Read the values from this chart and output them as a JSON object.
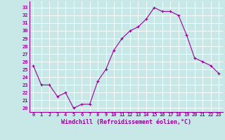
{
  "hours": [
    0,
    1,
    2,
    3,
    4,
    5,
    6,
    7,
    8,
    9,
    10,
    11,
    12,
    13,
    14,
    15,
    16,
    17,
    18,
    19,
    20,
    21,
    22,
    23
  ],
  "values": [
    25.5,
    23.0,
    23.0,
    21.5,
    22.0,
    20.0,
    20.5,
    20.5,
    23.5,
    25.0,
    27.5,
    29.0,
    30.0,
    30.5,
    31.5,
    33.0,
    32.5,
    32.5,
    32.0,
    29.5,
    26.5,
    26.0,
    25.5,
    24.5
  ],
  "line_color": "#990099",
  "marker": "+",
  "marker_size": 3,
  "marker_linewidth": 0.8,
  "background_color": "#c8e8e8",
  "grid_color": "#ffffff",
  "yticks": [
    20,
    21,
    22,
    23,
    24,
    25,
    26,
    27,
    28,
    29,
    30,
    31,
    32,
    33
  ],
  "ylim": [
    19.5,
    33.8
  ],
  "xlim": [
    -0.5,
    23.5
  ],
  "xlabel": "Windchill (Refroidissement éolien,°C)",
  "label_color": "#990099",
  "tick_fontsize": 5.0,
  "xlabel_fontsize": 6.0,
  "linewidth": 0.8
}
